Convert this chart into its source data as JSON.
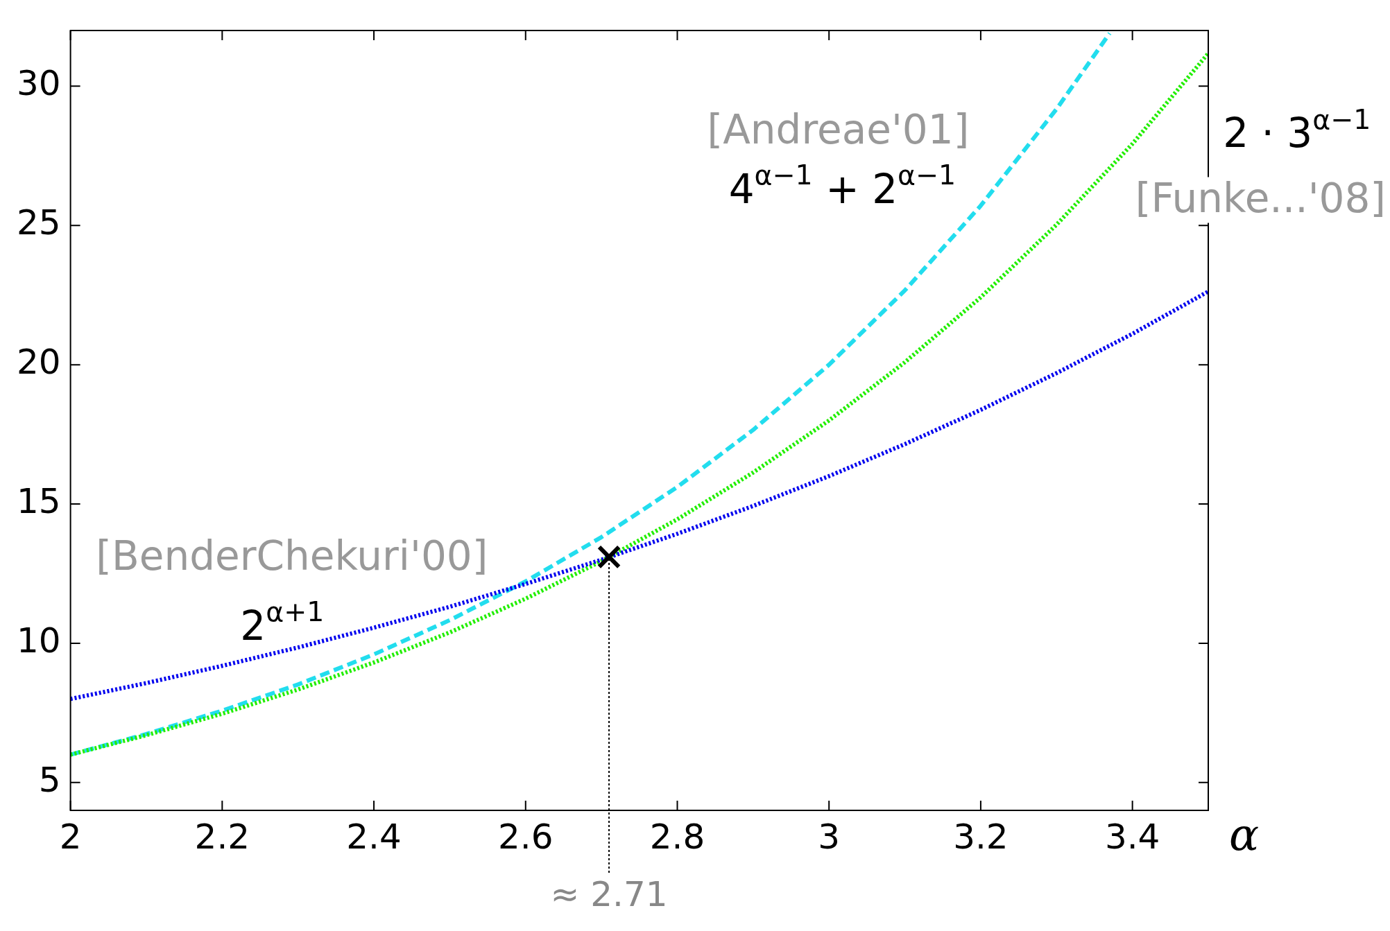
{
  "chart_data": {
    "type": "line",
    "xlabel": "α",
    "x": [
      2,
      2.1,
      2.2,
      2.3,
      2.4,
      2.5,
      2.6,
      2.7,
      2.8,
      2.9,
      3.0,
      3.1,
      3.2,
      3.3,
      3.4,
      3.5
    ],
    "series": [
      {
        "color": "#0000ee",
        "line_style": "dotted",
        "values": [
          8,
          8.57,
          9.19,
          9.85,
          10.56,
          11.31,
          12.13,
          13.0,
          13.93,
          14.93,
          16,
          17.15,
          18.38,
          19.7,
          21.11,
          22.63
        ]
      },
      {
        "color": "#22ee00",
        "line_style": "dotted",
        "values": [
          6,
          6.7,
          7.47,
          8.34,
          9.31,
          10.39,
          11.6,
          12.95,
          14.45,
          16.13,
          18,
          20.09,
          22.42,
          25.03,
          27.93,
          31.18
        ]
      },
      {
        "color": "#22ddee",
        "line_style": "dashed",
        "x": [
          2,
          2.1,
          2.2,
          2.3,
          2.4,
          2.5,
          2.6,
          2.7,
          2.8,
          2.9,
          3.0,
          3.1,
          3.2,
          3.3,
          3.37
        ],
        "values": [
          6,
          6.74,
          7.58,
          8.52,
          9.6,
          10.83,
          12.22,
          13.81,
          15.61,
          17.66,
          20,
          22.67,
          25.71,
          29.18,
          31.9
        ]
      },
      {
        "type": "scatter",
        "color": "#000000",
        "marker": "cross",
        "x": [
          2.71
        ],
        "values": [
          13.1
        ]
      }
    ],
    "xlim": [
      2,
      3.5
    ],
    "xticks": [
      2,
      2.2,
      2.4,
      2.6,
      2.8,
      3,
      3.2,
      3.4
    ],
    "ylim": [
      4,
      32
    ],
    "yticks": [
      5,
      10,
      15,
      20,
      25,
      30
    ],
    "grid": false,
    "legend": false,
    "ref_lines": [
      {
        "axis": "x",
        "value": 2.71,
        "label": "≈ 2.71",
        "color": "#000000",
        "line_style": "dotted"
      }
    ],
    "annotations": [
      "[BenderChekuri'00]",
      "2$^{α+1}$",
      "[Funke...'08]",
      "2 · 3$^{α−1}$",
      "[Andreae'01]",
      "4$^{α−1}$ + 2$^{α−1}$"
    ]
  }
}
